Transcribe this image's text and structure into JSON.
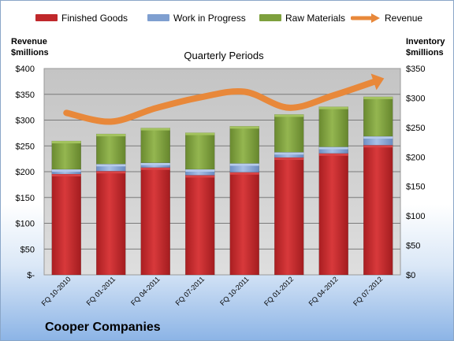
{
  "chart_data": {
    "type": "bar",
    "stacked": true,
    "title": "Quarterly Periods",
    "company": "Cooper Companies",
    "left_axis_title": [
      "Revenue",
      "$millions"
    ],
    "right_axis_title": [
      "Inventory",
      "$millions"
    ],
    "categories": [
      "FQ 10-2010",
      "FQ 01-2011",
      "FQ 04-2011",
      "FQ 07-2011",
      "FQ 10-2011",
      "FQ 01-2012",
      "FQ 04-2012",
      "FQ 07-2012"
    ],
    "left_axis": {
      "min": 0,
      "max": 400,
      "step": 50,
      "ticks": [
        "$-",
        "$50",
        "$100",
        "$150",
        "$200",
        "$250",
        "$300",
        "$350",
        "$400"
      ]
    },
    "right_axis": {
      "min": 0,
      "max": 350,
      "step": 50,
      "ticks": [
        "$0",
        "$50",
        "$100",
        "$150",
        "$200",
        "$250",
        "$300",
        "$350"
      ]
    },
    "bar_series_axis": "right",
    "series": [
      {
        "name": "Finished Goods",
        "kind": "bar",
        "color": "#c0282b",
        "values": [
          171,
          176,
          182,
          169,
          174,
          199,
          206,
          220
        ]
      },
      {
        "name": "Work in Progress",
        "kind": "bar",
        "color": "#7f9fd0",
        "values": [
          8,
          12,
          8,
          10,
          15,
          9,
          11,
          15
        ]
      },
      {
        "name": "Raw Materials",
        "kind": "bar",
        "color": "#7ea03d",
        "values": [
          48,
          51,
          59,
          62,
          63,
          64,
          68,
          67
        ]
      },
      {
        "name": "Revenue",
        "kind": "line",
        "axis": "left",
        "color": "#e8883a",
        "values": [
          314,
          297,
          323,
          344,
          355,
          324,
          348,
          377
        ]
      }
    ],
    "grid": true,
    "legend_position": "top"
  }
}
